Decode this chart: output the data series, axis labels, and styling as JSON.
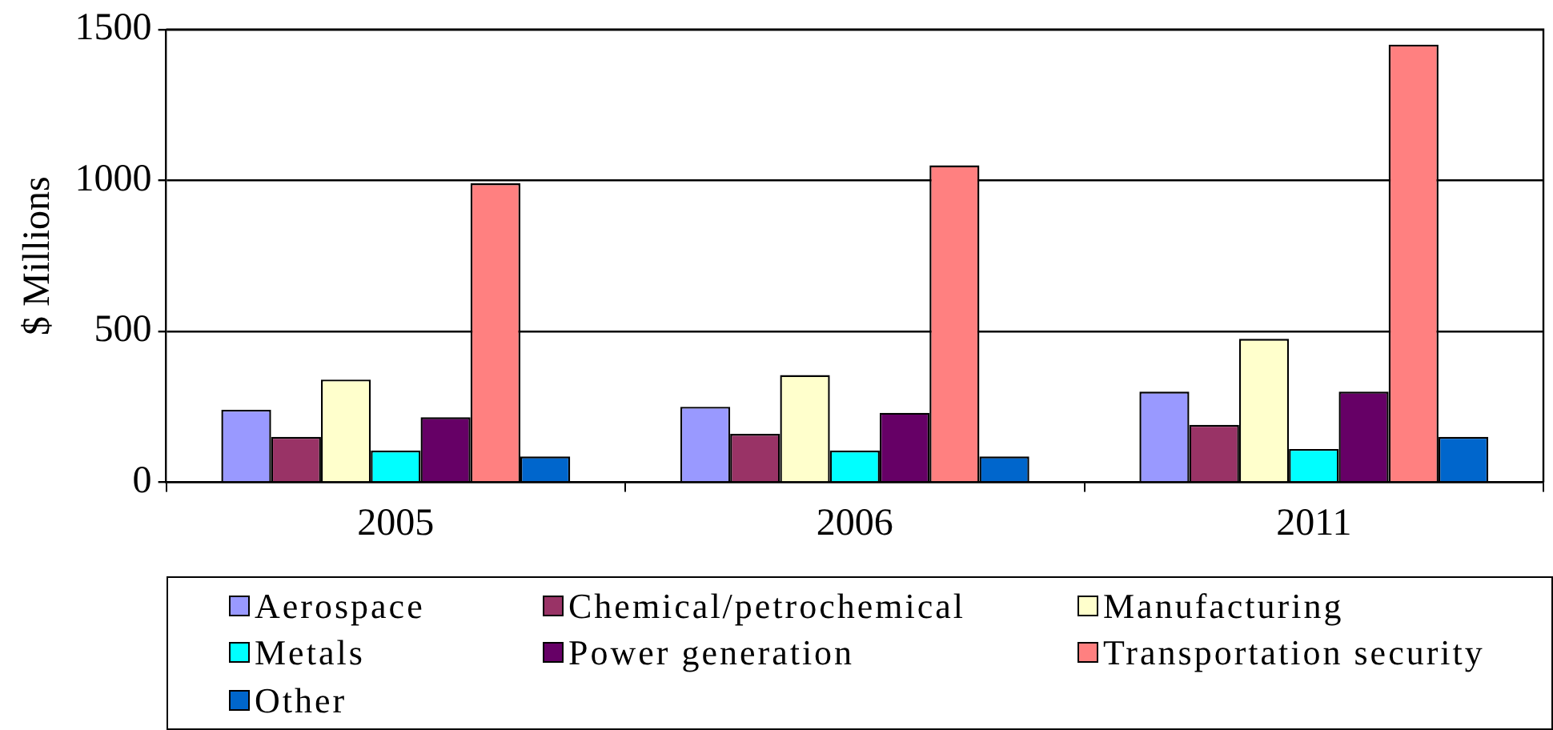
{
  "chart_data": {
    "type": "bar",
    "ylabel": "$ Millions",
    "categories": [
      "2005",
      "2006",
      "2011"
    ],
    "series": [
      {
        "name": "Aerospace",
        "color": "#9999ff",
        "values": [
          240,
          250,
          300
        ]
      },
      {
        "name": "Chemical/petrochemical",
        "color": "#993366",
        "values": [
          150,
          160,
          190
        ]
      },
      {
        "name": "Manufacturing",
        "color": "#ffffcc",
        "values": [
          340,
          355,
          475
        ]
      },
      {
        "name": "Metals",
        "color": "#00ffff",
        "values": [
          105,
          105,
          110
        ]
      },
      {
        "name": "Power generation",
        "color": "#660066",
        "values": [
          215,
          230,
          300
        ]
      },
      {
        "name": "Transportation security",
        "color": "#ff8080",
        "values": [
          990,
          1050,
          1450
        ]
      },
      {
        "name": "Other",
        "color": "#0066cc",
        "values": [
          85,
          85,
          150
        ]
      }
    ],
    "ylim": [
      0,
      1500
    ],
    "yticks": [
      0,
      500,
      1000,
      1500
    ],
    "grid": "y",
    "legend": "bottom"
  }
}
